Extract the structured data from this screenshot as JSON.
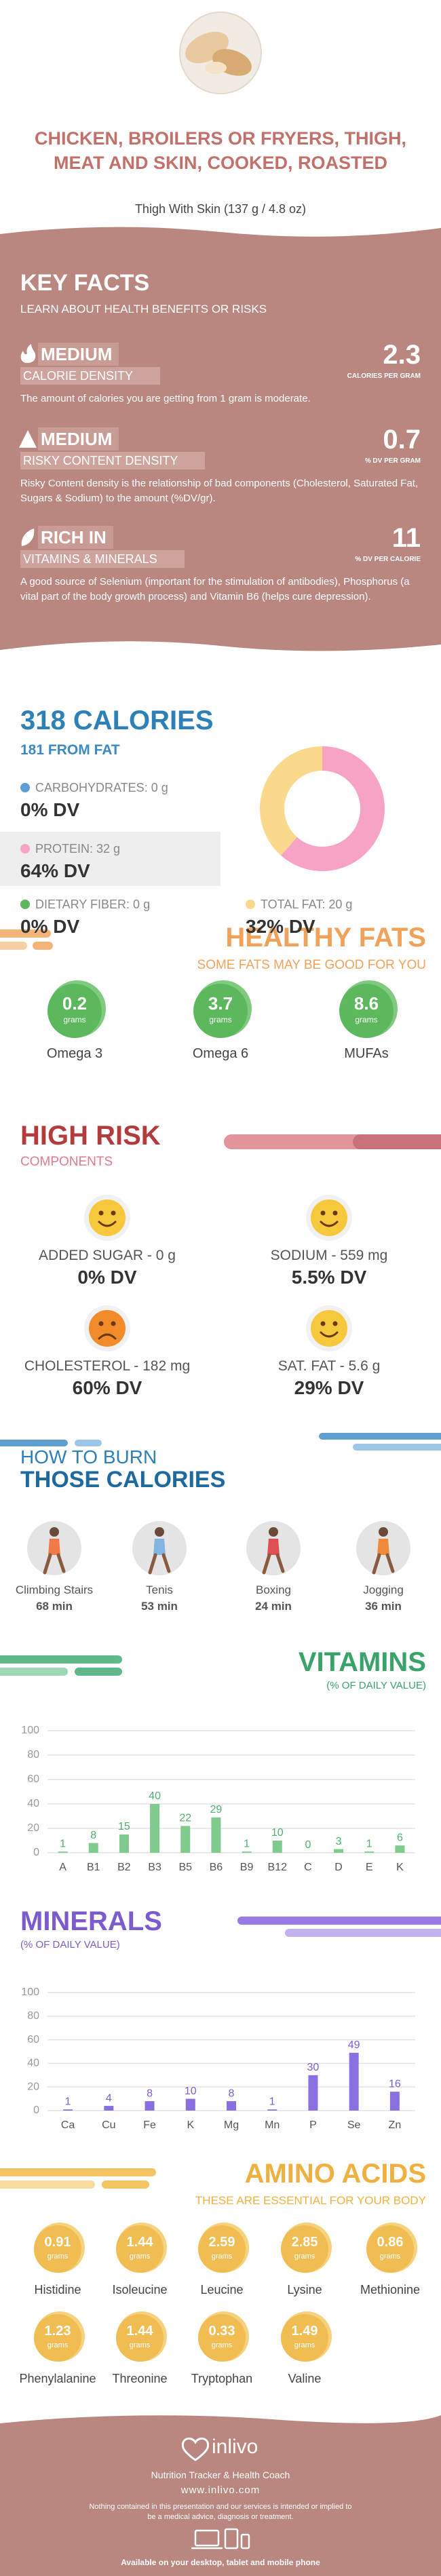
{
  "header": {
    "title": "CHICKEN, BROILERS OR FRYERS, THIGH, MEAT AND SKIN, COOKED, ROASTED",
    "subtitle": "Thigh With Skin (137 g / 4.8 oz)"
  },
  "key_facts": {
    "title": "KEY FACTS",
    "subtitle": "LEARN ABOUT HEALTH BENEFITS OR RISKS",
    "items": [
      {
        "level": "MEDIUM",
        "label": "CALORIE DENSITY",
        "value": 2.3,
        "unit": "CALORIES PER GRAM",
        "description": "The amount of calories you are getting from 1 gram is moderate."
      },
      {
        "level": "MEDIUM",
        "label": "RISKY CONTENT DENSITY",
        "value": 0.7,
        "unit": "% DV PER GRAM",
        "description": "Risky Content density is the relationship of bad components (Cholesterol, Saturated Fat, Sugars & Sodium) to the amount (%DV/gr)."
      },
      {
        "level": "RICH IN",
        "label": "VITAMINS & MINERALS",
        "value": 11,
        "unit": "% DV PER CALORIE",
        "description": "A good source of Selenium (important for the stimulation of antibodies), Phosphorus (a vital part of the body growth process) and Vitamin B6 (helps cure depression)."
      }
    ]
  },
  "calories": {
    "title": "318 CALORIES",
    "subtitle": "181 FROM FAT",
    "nutrients": [
      {
        "name": "CARBOHYDRATES:",
        "grams": 0,
        "unit": "g",
        "dv": "0% DV",
        "color": "#5b9fd6"
      },
      {
        "name": "PROTEIN:",
        "grams": 32,
        "unit": "g",
        "dv": "64% DV",
        "color": "#f6a3c6"
      },
      {
        "name": "DIETARY FIBER:",
        "grams": 0,
        "unit": "g",
        "dv": "0% DV",
        "color": "#5cb85c"
      },
      {
        "name": "TOTAL FAT:",
        "grams": 20,
        "unit": "g",
        "dv": "32% DV",
        "color": "#fbd98c"
      }
    ]
  },
  "healthy_fats": {
    "title": "HEALTHY FATS",
    "subtitle": "SOME FATS MAY BE GOOD FOR YOU",
    "items": [
      {
        "value": 0.2,
        "unit": "grams",
        "name": "Omega 3"
      },
      {
        "value": 3.7,
        "unit": "grams",
        "name": "Omega 6"
      },
      {
        "value": 8.6,
        "unit": "grams",
        "name": "MUFAs"
      }
    ]
  },
  "high_risk": {
    "title": "HIGH RISK",
    "subtitle": "COMPONENTS",
    "items": [
      {
        "label": "ADDED SUGAR - 0 g",
        "dv": "0% DV",
        "mood": "happy"
      },
      {
        "label": "SODIUM - 559 mg",
        "dv": "5.5% DV",
        "mood": "happy"
      },
      {
        "label": "CHOLESTEROL - 182 mg",
        "dv": "60% DV",
        "mood": "sad"
      },
      {
        "label": "SAT. FAT - 5.6 g",
        "dv": "29% DV",
        "mood": "happy"
      }
    ]
  },
  "burn": {
    "title": "HOW TO BURN",
    "subtitle": "THOSE CALORIES",
    "items": [
      {
        "activity": "Climbing Stairs",
        "time": "68 min"
      },
      {
        "activity": "Tenis",
        "time": "53 min"
      },
      {
        "activity": "Boxing",
        "time": "24 min"
      },
      {
        "activity": "Jogging",
        "time": "36 min"
      }
    ]
  },
  "chart_data": [
    {
      "type": "bar",
      "title": "VITAMINS",
      "subtitle": "(% OF DAILY VALUE)",
      "categories": [
        "A",
        "B1",
        "B2",
        "B3",
        "B5",
        "B6",
        "B9",
        "B12",
        "C",
        "D",
        "E",
        "K"
      ],
      "values": [
        1,
        8,
        15,
        40,
        22,
        29,
        1,
        10,
        0,
        3,
        1,
        6
      ],
      "color": "#7fcb8e",
      "ylim": [
        0,
        100
      ],
      "yticks": [
        0,
        20,
        40,
        60,
        80,
        100
      ],
      "grid": true
    },
    {
      "type": "bar",
      "title": "MINERALS",
      "subtitle": "(% OF DAILY VALUE)",
      "categories": [
        "Ca",
        "Cu",
        "Fe",
        "K",
        "Mg",
        "Mn",
        "P",
        "Se",
        "Zn"
      ],
      "values": [
        1,
        4,
        8,
        10,
        8,
        1,
        30,
        49,
        16
      ],
      "color": "#8a6fe0",
      "ylim": [
        0,
        100
      ],
      "yticks": [
        0,
        20,
        40,
        60,
        80,
        100
      ],
      "grid": true
    }
  ],
  "amino_acids": {
    "title": "AMINO ACIDS",
    "subtitle": "THESE ARE ESSENTIAL FOR YOUR BODY",
    "unit": "grams",
    "items": [
      {
        "name": "Histidine",
        "value": 0.91
      },
      {
        "name": "Isoleucine",
        "value": 1.44
      },
      {
        "name": "Leucine",
        "value": 2.59
      },
      {
        "name": "Lysine",
        "value": 2.85
      },
      {
        "name": "Methionine",
        "value": 0.86
      },
      {
        "name": "Phenylalanine",
        "value": 1.23
      },
      {
        "name": "Threonine",
        "value": 1.44
      },
      {
        "name": "Tryptophan",
        "value": 0.33
      },
      {
        "name": "Valine",
        "value": 1.49
      }
    ]
  },
  "footer": {
    "brand": "inlivo",
    "tagline": "Nutrition Tracker & Health Coach",
    "url": "www.inlivo.com",
    "disclaimer": "Nothing contained in this presentation and our services is intended or implied to be a medical advice, diagnosis or treatment.",
    "availability": "Available on your desktop, tablet and mobile phone"
  }
}
